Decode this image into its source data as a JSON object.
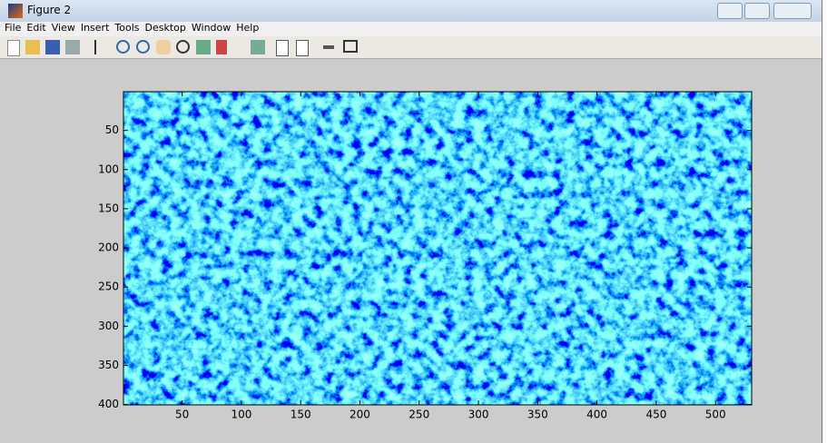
{
  "window": {
    "title": "Figure 2",
    "menu": [
      "File",
      "Edit",
      "View",
      "Insert",
      "Tools",
      "Desktop",
      "Window",
      "Help"
    ]
  },
  "chart_data": {
    "type": "image",
    "xlim": [
      0.5,
      530.5
    ],
    "ylim": [
      0.5,
      400.5
    ],
    "y_reversed": true,
    "xticks": [
      50,
      100,
      150,
      200,
      250,
      300,
      350,
      400,
      450,
      500
    ],
    "yticks": [
      50,
      100,
      150,
      200,
      250,
      300,
      350,
      400
    ]
  }
}
